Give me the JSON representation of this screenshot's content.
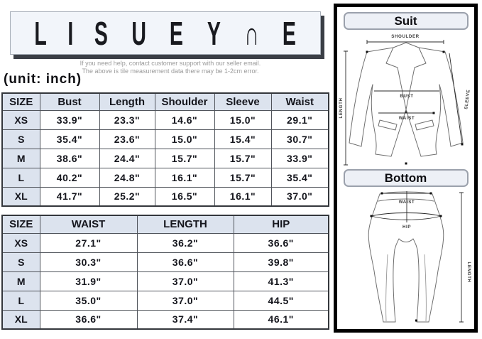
{
  "brand": {
    "letters": [
      "L",
      "I",
      "S",
      "U",
      "E",
      "Y",
      "∩",
      "E"
    ]
  },
  "help": {
    "line1": "If you need help, contact customer support with our seller email.",
    "line2": "The above is tile measurement data there may be 1-2cm error."
  },
  "unit_label": "(unit: inch)",
  "suit_table": {
    "headers": [
      "SIZE",
      "Bust",
      "Length",
      "Shoulder",
      "Sleeve",
      "Waist"
    ],
    "rows": [
      [
        "XS",
        "33.9\"",
        "23.3\"",
        "14.6\"",
        "15.0\"",
        "29.1\""
      ],
      [
        "S",
        "35.4\"",
        "23.6\"",
        "15.0\"",
        "15.4\"",
        "30.7\""
      ],
      [
        "M",
        "38.6\"",
        "24.4\"",
        "15.7\"",
        "15.7\"",
        "33.9\""
      ],
      [
        "L",
        "40.2\"",
        "24.8\"",
        "16.1\"",
        "15.7\"",
        "35.4\""
      ],
      [
        "XL",
        "41.7\"",
        "25.2\"",
        "16.5\"",
        "16.1\"",
        "37.0\""
      ]
    ]
  },
  "bottom_table": {
    "headers": [
      "SIZE",
      "WAIST",
      "LENGTH",
      "HIP"
    ],
    "rows": [
      [
        "XS",
        "27.1\"",
        "36.2\"",
        "36.6\""
      ],
      [
        "S",
        "30.3\"",
        "36.6\"",
        "39.8\""
      ],
      [
        "M",
        "31.9\"",
        "37.0\"",
        "41.3\""
      ],
      [
        "L",
        "35.0\"",
        "37.0\"",
        "44.5\""
      ],
      [
        "XL",
        "36.6\"",
        "37.4\"",
        "46.1\""
      ]
    ]
  },
  "diagram_panel": {
    "suit_title": "Suit",
    "bottom_title": "Bottom",
    "suit_labels": {
      "shoulder": "SHOULDER",
      "length": "LENGTH",
      "sleeve": "SLEEVE",
      "bust": "BUST",
      "waist": "WAIST"
    },
    "bottom_labels": {
      "waist": "WAIST",
      "hip": "HIP",
      "length": "LENGTH"
    }
  },
  "colors": {
    "table_header_bg": "#dce3ee",
    "table_border": "#50545b",
    "panel_border": "#000000",
    "label_box_bg": "#edf0f6",
    "logo_bg": "#f2f5fa",
    "text": "#15161d",
    "muted_text": "#9b9b9b"
  }
}
